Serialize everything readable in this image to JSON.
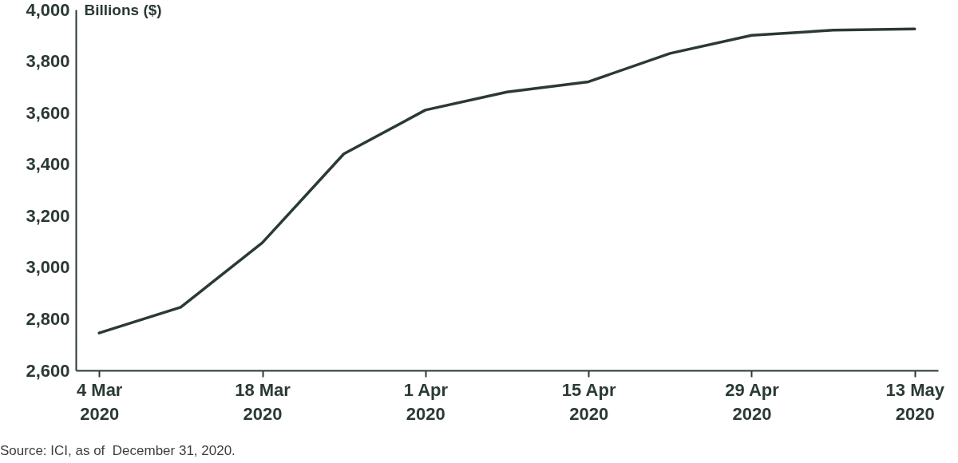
{
  "chart_data": {
    "type": "line",
    "ylabel": "Billions ($)",
    "x": [
      "2020-03-04",
      "2020-03-11",
      "2020-03-18",
      "2020-03-25",
      "2020-04-01",
      "2020-04-08",
      "2020-04-15",
      "2020-04-22",
      "2020-04-29",
      "2020-05-06",
      "2020-05-13"
    ],
    "series": [
      {
        "color": "#2b3a33",
        "values": [
          2745,
          2845,
          3095,
          3440,
          3610,
          3680,
          3720,
          3830,
          3900,
          3920,
          3925
        ]
      }
    ],
    "xlim": [
      "2020-03-02",
      "2020-05-15"
    ],
    "xticks": [
      {
        "value": "2020-03-04",
        "label": "4 Mar 2020"
      },
      {
        "value": "2020-03-18",
        "label": "18 Mar 2020"
      },
      {
        "value": "2020-04-01",
        "label": "1 Apr 2020"
      },
      {
        "value": "2020-04-15",
        "label": "15 Apr 2020"
      },
      {
        "value": "2020-04-29",
        "label": "29 Apr 2020"
      },
      {
        "value": "2020-05-13",
        "label": "13 May 2020"
      }
    ],
    "ylim": [
      2600,
      4000
    ],
    "yticks": [
      {
        "value": 2600,
        "label": "2,600"
      },
      {
        "value": 2800,
        "label": "2,800"
      },
      {
        "value": 3000,
        "label": "3,000"
      },
      {
        "value": 3200,
        "label": "3,200"
      },
      {
        "value": 3400,
        "label": "3,400"
      },
      {
        "value": 3600,
        "label": "3,600"
      },
      {
        "value": 3800,
        "label": "3,800"
      },
      {
        "value": 4000,
        "label": "4,000"
      }
    ],
    "grid": false,
    "marker": "none",
    "line_style": "solid",
    "annotations": [
      "Source: ICI, as of  December 31, 2020."
    ]
  }
}
